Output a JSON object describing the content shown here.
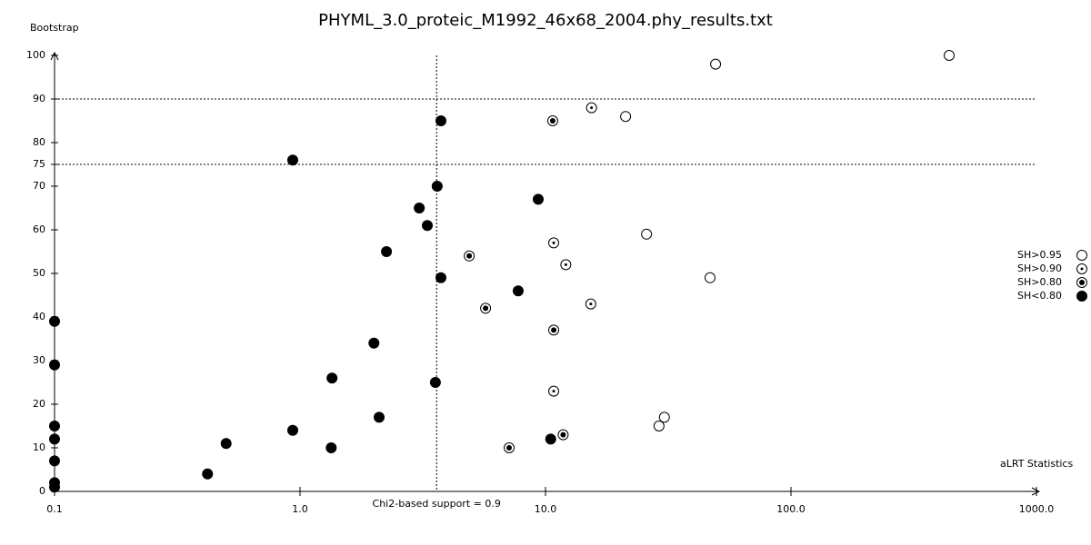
{
  "chart_data": {
    "type": "scatter",
    "title": "PHYML_3.0_proteic_M1992_46x68_2004.phy_results.txt",
    "y_label": "Bootstrap",
    "x_label": "aLRT Statistics",
    "x_log": true,
    "xlim": [
      0.1,
      1000
    ],
    "ylim": [
      0,
      100
    ],
    "xticks": [
      0.1,
      {
        "value": 1,
        "label": "1.0"
      },
      {
        "value": 10,
        "label": "10.0"
      },
      {
        "value": 100,
        "label": "100.0"
      },
      {
        "value": 1000,
        "label": "1000.0"
      }
    ],
    "yticks": [
      0,
      10,
      20,
      30,
      40,
      50,
      60,
      70,
      75,
      80,
      90,
      100
    ],
    "hlines": [
      75,
      90
    ],
    "vline": {
      "value": 3.6,
      "label": "Chi2-based support = 0.9"
    },
    "color": "#000000",
    "series": [
      {
        "name": "SH>0.95",
        "marker": "open",
        "x": [
          441,
          49.3,
          21.2,
          25.8,
          46.8,
          29.0,
          30.5
        ],
        "y": [
          100,
          98,
          86,
          59,
          49,
          15,
          17
        ]
      },
      {
        "name": "SH>0.90",
        "marker": "dot",
        "x": [
          15.4,
          10.8,
          12.1,
          15.3,
          10.8
        ],
        "y": [
          88,
          57,
          52,
          43,
          23
        ]
      },
      {
        "name": "SH>0.80",
        "marker": "bigdot",
        "x": [
          10.7,
          4.89,
          5.7,
          10.8,
          7.11,
          11.8
        ],
        "y": [
          85,
          54,
          42,
          37,
          10,
          13
        ]
      },
      {
        "name": "SH<0.80",
        "marker": "filled",
        "x": [
          3.75,
          0.934,
          3.62,
          9.34,
          3.06,
          3.3,
          2.25,
          3.75,
          7.74,
          0.1,
          2.0,
          0.1,
          1.35,
          3.56,
          2.1,
          0.1,
          0.934,
          0.1,
          10.5,
          0.5,
          1.34,
          0.1,
          0.42,
          0.1,
          0.1
        ],
        "y": [
          85,
          76,
          70,
          67,
          65,
          61,
          55,
          49,
          46,
          39,
          34,
          29,
          26,
          25,
          17,
          15,
          14,
          12,
          12,
          11,
          10,
          7,
          4,
          2,
          1
        ]
      }
    ]
  }
}
